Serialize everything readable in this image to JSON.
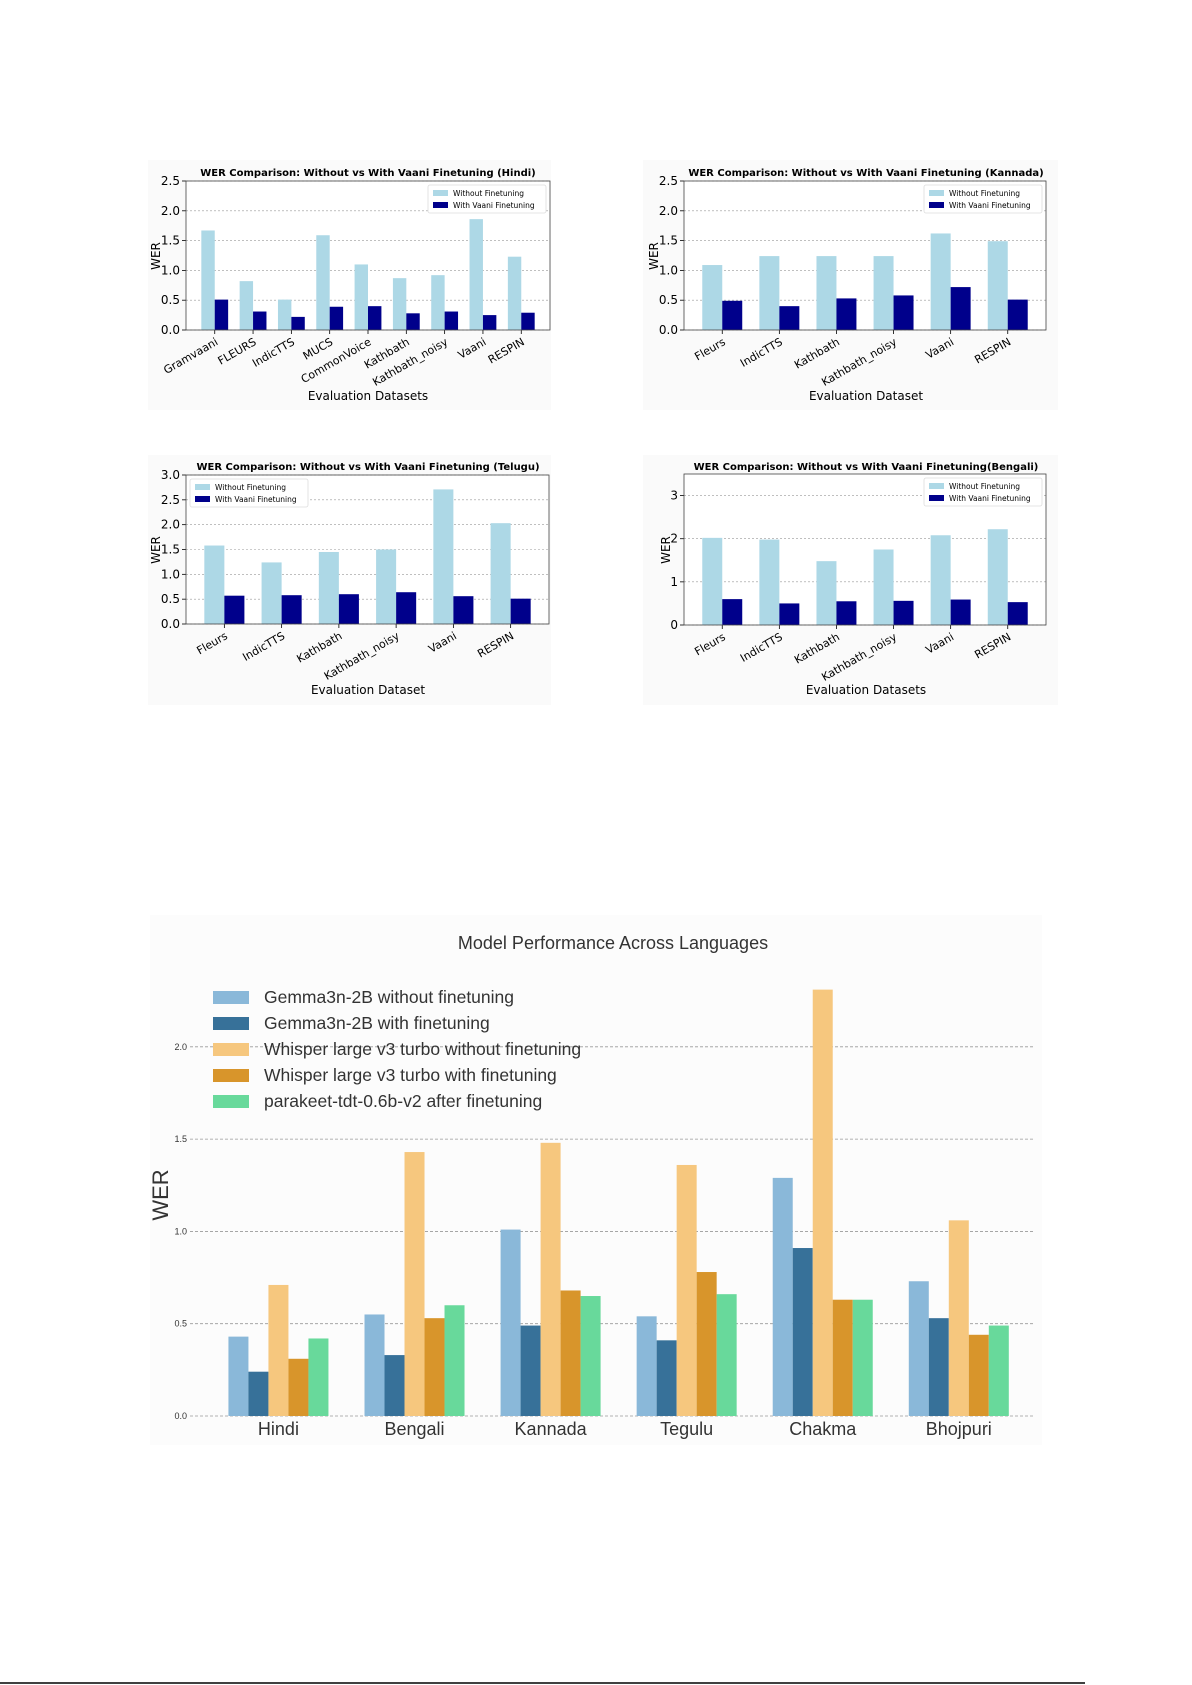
{
  "chart_data": [
    {
      "type": "bar",
      "title": "WER Comparison: Without vs With Vaani Finetuning (Hindi)",
      "xlabel": "Evaluation Datasets",
      "ylabel": "WER",
      "ylim": [
        0,
        2.5
      ],
      "yticks": [
        "0.0",
        "0.5",
        "1.0",
        "1.5",
        "2.0",
        "2.5"
      ],
      "grid": true,
      "legend": "top-right",
      "categories": [
        "Gramvaani",
        "FLEURS",
        "IndicTTS",
        "MUCS",
        "CommonVoice",
        "Kathbath",
        "Kathbath_noisy",
        "Vaani",
        "RESPIN"
      ],
      "series": [
        {
          "name": "Without Finetuning",
          "color": "#add8e6",
          "values": [
            1.67,
            0.82,
            0.51,
            1.59,
            1.1,
            0.87,
            0.92,
            1.86,
            1.23
          ]
        },
        {
          "name": "With Vaani Finetuning",
          "color": "#00008b",
          "values": [
            0.51,
            0.31,
            0.22,
            0.39,
            0.4,
            0.28,
            0.31,
            0.25,
            0.29
          ]
        }
      ]
    },
    {
      "type": "bar",
      "title": "WER Comparison: Without vs With Vaani Finetuning (Kannada)",
      "xlabel": "Evaluation Dataset",
      "ylabel": "WER",
      "ylim": [
        0,
        2.5
      ],
      "yticks": [
        "0.0",
        "0.5",
        "1.0",
        "1.5",
        "2.0",
        "2.5"
      ],
      "grid": true,
      "legend": "top-right",
      "categories": [
        "Fleurs",
        "IndicTTS",
        "Kathbath",
        "Kathbath_noisy",
        "Vaani",
        "RESPIN"
      ],
      "series": [
        {
          "name": "Without Finetuning",
          "color": "#add8e6",
          "values": [
            1.09,
            1.24,
            1.24,
            1.24,
            1.62,
            1.49
          ]
        },
        {
          "name": "With Vaani Finetuning",
          "color": "#00008b",
          "values": [
            0.49,
            0.4,
            0.53,
            0.58,
            0.72,
            0.51
          ]
        }
      ]
    },
    {
      "type": "bar",
      "title": "WER Comparison: Without vs With Vaani Finetuning (Telugu)",
      "xlabel": "Evaluation Dataset",
      "ylabel": "WER",
      "ylim": [
        0,
        3.0
      ],
      "yticks": [
        "0.0",
        "0.5",
        "1.0",
        "1.5",
        "2.0",
        "2.5",
        "3.0"
      ],
      "grid": true,
      "legend": "top-left",
      "categories": [
        "Fleurs",
        "IndicTTS",
        "Kathbath",
        "Kathbath_noisy",
        "Vaani",
        "RESPIN"
      ],
      "series": [
        {
          "name": "Without Finetuning",
          "color": "#add8e6",
          "values": [
            1.58,
            1.24,
            1.45,
            1.5,
            2.71,
            2.03
          ]
        },
        {
          "name": "With Vaani Finetuning",
          "color": "#00008b",
          "values": [
            0.57,
            0.58,
            0.6,
            0.64,
            0.56,
            0.51
          ]
        }
      ]
    },
    {
      "type": "bar",
      "title": "WER Comparison: Without vs With Vaani Finetuning(Bengali)",
      "xlabel": "Evaluation Datasets",
      "ylabel": "WER",
      "ylim": [
        0,
        3.5
      ],
      "yticks": [
        "0",
        "1",
        "2",
        "3"
      ],
      "grid": true,
      "legend": "top-right",
      "categories": [
        "Fleurs",
        "IndicTTS",
        "Kathbath",
        "Kathbath_noisy",
        "Vaani",
        "RESPIN"
      ],
      "series": [
        {
          "name": "Without Finetuning",
          "color": "#add8e6",
          "values": [
            2.02,
            1.98,
            1.48,
            1.75,
            2.08,
            2.22
          ]
        },
        {
          "name": "With Vaani Finetuning",
          "color": "#00008b",
          "values": [
            0.6,
            0.5,
            0.55,
            0.56,
            0.59,
            0.53
          ]
        }
      ]
    },
    {
      "type": "bar",
      "title": "Model Performance Across Languages",
      "xlabel": "",
      "ylabel": "WER",
      "ylim": [
        0,
        2.4
      ],
      "yticks": [
        "0.0",
        "0.5",
        "1.0",
        "1.5",
        "2.0"
      ],
      "grid": true,
      "legend": "top-left",
      "categories": [
        "Hindi",
        "Bengali",
        "Kannada",
        "Tegulu",
        "Chakma",
        "Bhojpuri"
      ],
      "series": [
        {
          "name": "Gemma3n-2B without finetuning",
          "color": "#8ab8d9",
          "values": [
            0.43,
            0.55,
            1.01,
            0.54,
            1.29,
            0.73
          ]
        },
        {
          "name": "Gemma3n-2B with finetuning",
          "color": "#377199",
          "values": [
            0.24,
            0.33,
            0.49,
            0.41,
            0.91,
            0.53
          ]
        },
        {
          "name": "Whisper large v3 turbo without finetuning",
          "color": "#f6c77e",
          "values": [
            0.71,
            1.43,
            1.48,
            1.36,
            2.31,
            1.06
          ]
        },
        {
          "name": "Whisper large v3 turbo with finetuning",
          "color": "#d8952b",
          "values": [
            0.31,
            0.53,
            0.68,
            0.78,
            0.63,
            0.44
          ]
        },
        {
          "name": "parakeet-tdt-0.6b-v2 after finetuning",
          "color": "#68d99b",
          "values": [
            0.42,
            0.6,
            0.65,
            0.66,
            0.63,
            0.49
          ]
        }
      ]
    }
  ]
}
